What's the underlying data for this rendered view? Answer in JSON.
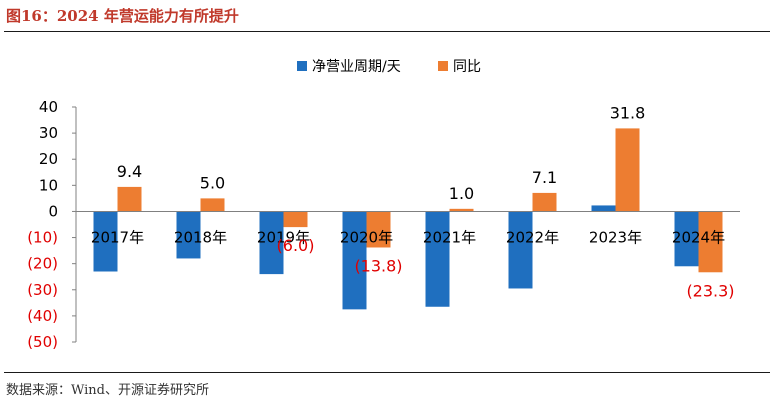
{
  "figure": {
    "title": "图16：2024 年营运能力有所提升",
    "source": "数据来源：Wind、开源证券研究所"
  },
  "colors": {
    "series_1": "#1f6fbf",
    "series_2": "#ed7d31",
    "negative_label": "#e00000",
    "rule": "#1a1a1a"
  },
  "chart_data": {
    "type": "bar",
    "categories": [
      "2017年",
      "2018年",
      "2019年",
      "2020年",
      "2021年",
      "2022年",
      "2023年",
      "2024年"
    ],
    "series": [
      {
        "name": "净营业周期/天",
        "values": [
          -23,
          -18,
          -24,
          -37.5,
          -36.5,
          -29.5,
          2.3,
          -21
        ]
      },
      {
        "name": "同比",
        "values": [
          9.4,
          5.0,
          -6.0,
          -13.8,
          1.0,
          7.1,
          31.8,
          -23.3
        ]
      }
    ],
    "data_labels": {
      "series": "同比",
      "texts": [
        "9.4",
        "5.0",
        "(6.0)",
        "(13.8)",
        "1.0",
        "7.1",
        "31.8",
        "(23.3)"
      ]
    },
    "y_ticks": [
      40,
      30,
      20,
      10,
      0,
      -10,
      -20,
      -30,
      -40,
      -50
    ],
    "y_tick_labels": [
      "40",
      "30",
      "20",
      "10",
      "0",
      "(10)",
      "(20)",
      "(30)",
      "(40)",
      "(50)"
    ],
    "ylim": [
      -50,
      40
    ],
    "xlabel": "",
    "ylabel": "",
    "legend_position": "top-center",
    "grid": false
  }
}
